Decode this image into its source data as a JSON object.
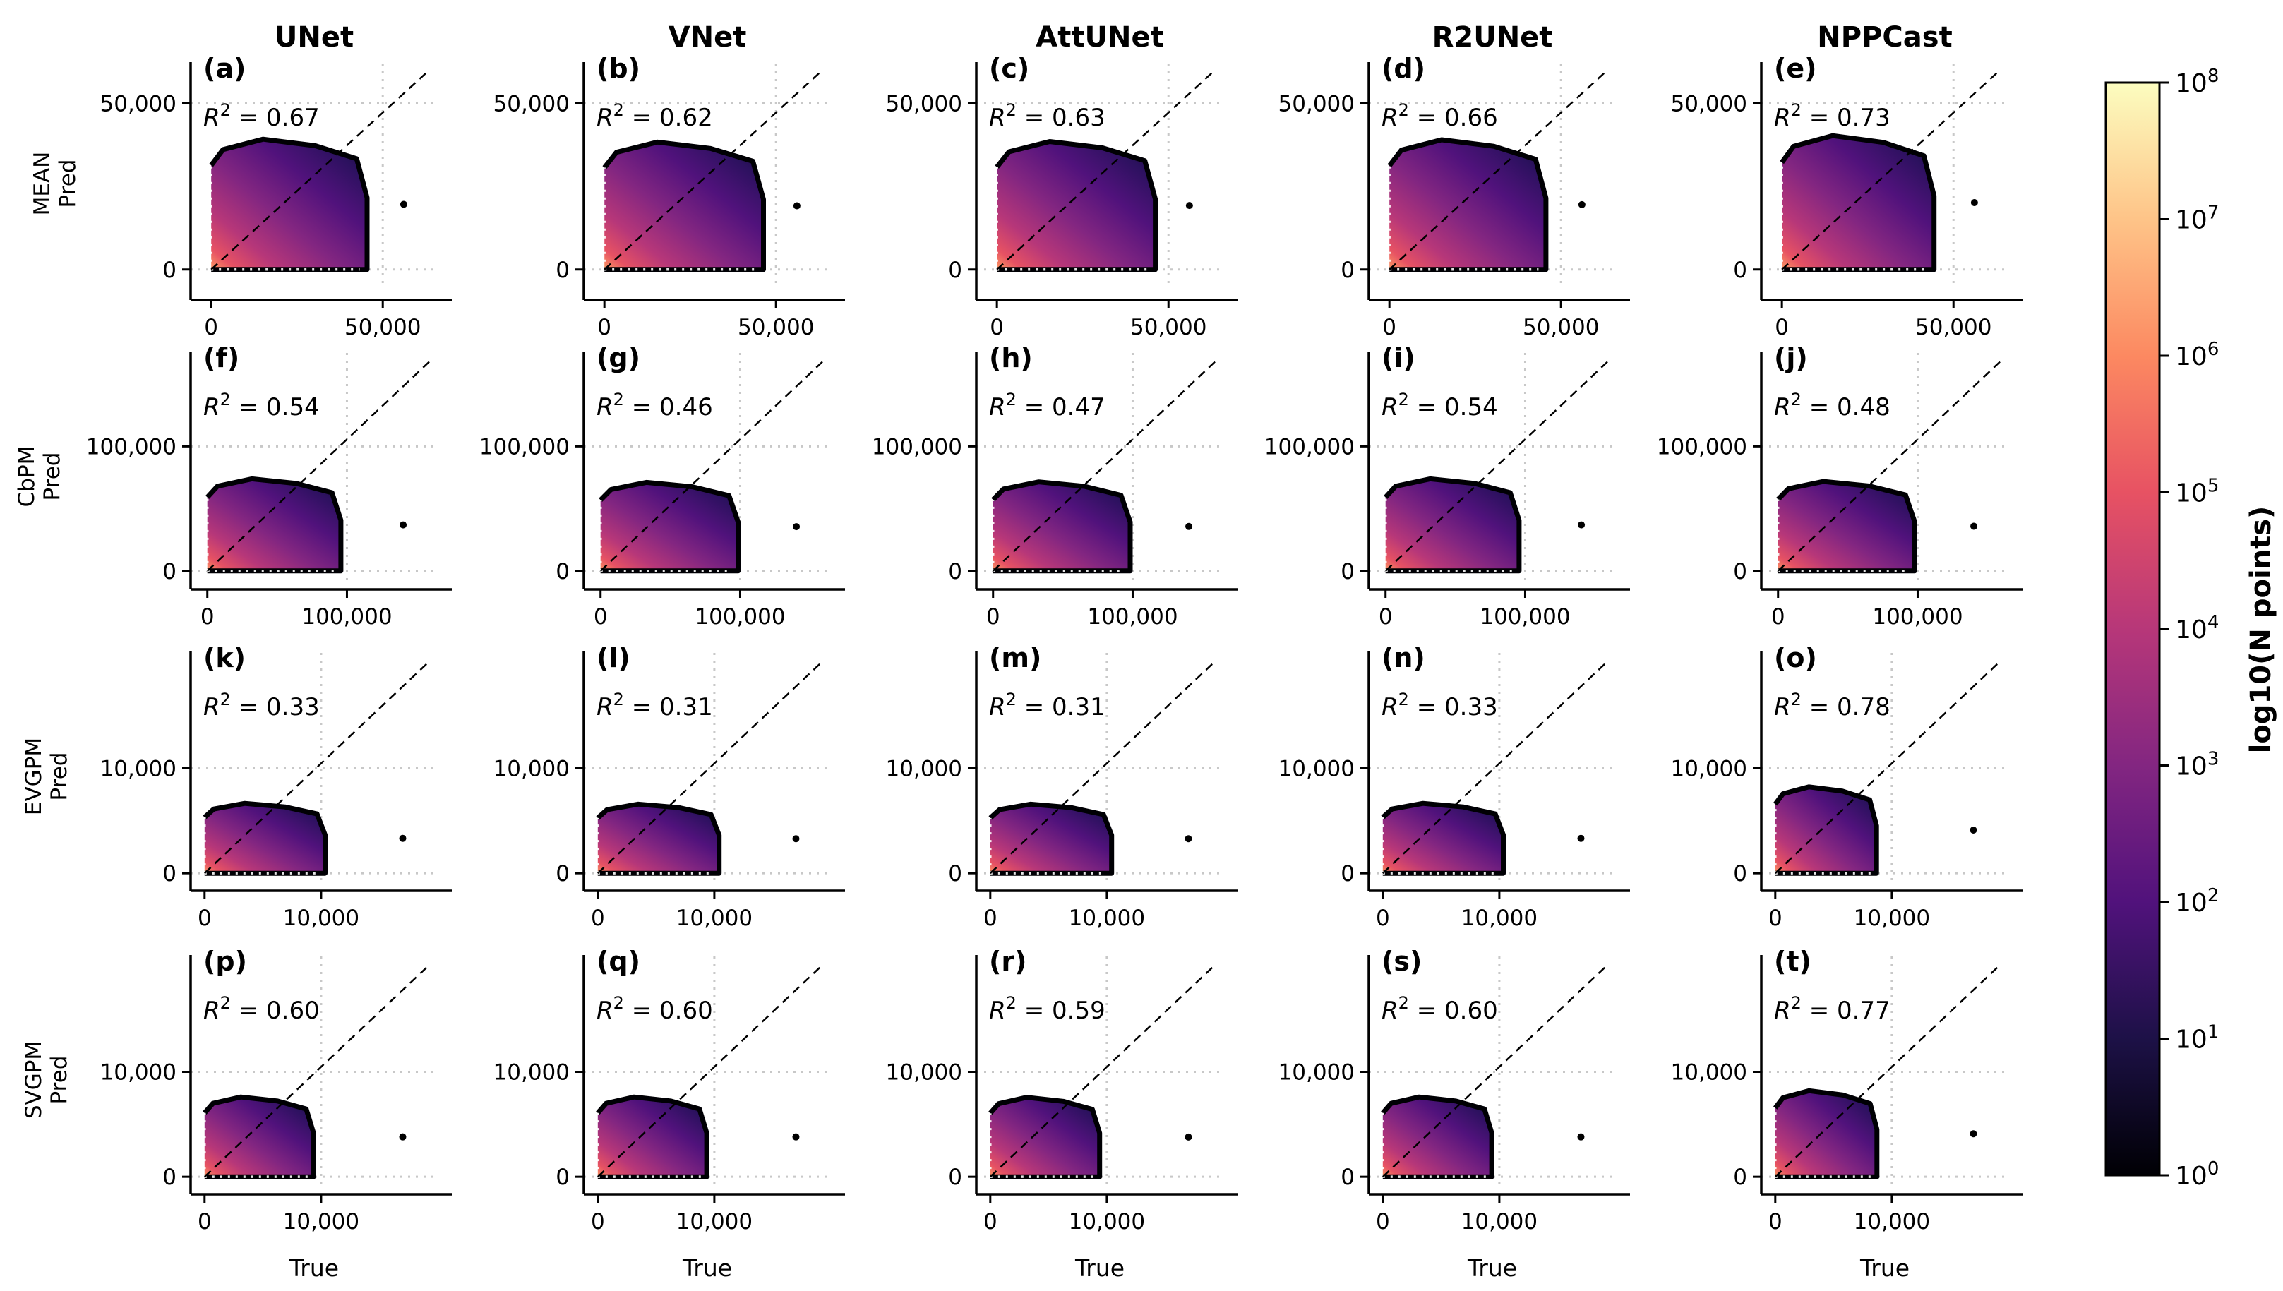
{
  "figure": {
    "columns": [
      "UNet",
      "VNet",
      "AttUNet",
      "R2UNet",
      "NPPCast"
    ],
    "rows": [
      {
        "name": "MEAN",
        "ylabel": "MEAN\nPred"
      },
      {
        "name": "CbPM",
        "ylabel": "CbPM\nPred"
      },
      {
        "name": "EVGPM",
        "ylabel": "EVGPM\nPred"
      },
      {
        "name": "SVGPM",
        "ylabel": "SVGPM\nPred"
      }
    ],
    "xlabel": "True",
    "colorbar": {
      "label": "log10(N points)",
      "ticks": [
        "10^0",
        "10^1",
        "10^2",
        "10^3",
        "10^4",
        "10^5",
        "10^6",
        "10^7",
        "10^8"
      ],
      "colormap": "magma",
      "colors": [
        "#000004",
        "#1d1147",
        "#51127c",
        "#832681",
        "#b73779",
        "#e75263",
        "#fc8961",
        "#fec488",
        "#fcfdbf"
      ]
    }
  },
  "chart_data": [
    {
      "type": "hexbin",
      "panel": "(a)",
      "model": "UNet",
      "target": "MEAN",
      "r2": "0.67",
      "r2_value": 0.67,
      "xlabel": "",
      "ylabel": "MEAN Pred",
      "xticks": [
        "0",
        "50,000"
      ],
      "yticks": [
        "0",
        "50,000"
      ],
      "xlim": [
        -6000,
        66000
      ],
      "ylim": [
        -6000,
        62000
      ],
      "vref": 50000,
      "href": 50000
    },
    {
      "type": "hexbin",
      "panel": "(b)",
      "model": "VNet",
      "target": "MEAN",
      "r2": "0.62",
      "r2_value": 0.62,
      "xlabel": "",
      "ylabel": "",
      "xticks": [
        "0",
        "50,000"
      ],
      "yticks": [
        "0",
        "50,000"
      ],
      "xlim": [
        -6000,
        66000
      ],
      "ylim": [
        -6000,
        62000
      ],
      "vref": 50000,
      "href": 50000
    },
    {
      "type": "hexbin",
      "panel": "(c)",
      "model": "AttUNet",
      "target": "MEAN",
      "r2": "0.63",
      "r2_value": 0.63,
      "xlabel": "",
      "ylabel": "",
      "xticks": [
        "0",
        "50,000"
      ],
      "yticks": [
        "0",
        "50,000"
      ],
      "xlim": [
        -6000,
        66000
      ],
      "ylim": [
        -6000,
        62000
      ],
      "vref": 50000,
      "href": 50000
    },
    {
      "type": "hexbin",
      "panel": "(d)",
      "model": "R2UNet",
      "target": "MEAN",
      "r2": "0.66",
      "r2_value": 0.66,
      "xlabel": "",
      "ylabel": "",
      "xticks": [
        "0",
        "50,000"
      ],
      "yticks": [
        "0",
        "50,000"
      ],
      "xlim": [
        -6000,
        66000
      ],
      "ylim": [
        -6000,
        62000
      ],
      "vref": 50000,
      "href": 50000
    },
    {
      "type": "hexbin",
      "panel": "(e)",
      "model": "NPPCast",
      "target": "MEAN",
      "r2": "0.73",
      "r2_value": 0.73,
      "xlabel": "",
      "ylabel": "",
      "xticks": [
        "0",
        "50,000"
      ],
      "yticks": [
        "0",
        "50,000"
      ],
      "xlim": [
        -6000,
        66000
      ],
      "ylim": [
        -6000,
        62000
      ],
      "vref": 50000,
      "href": 50000
    },
    {
      "type": "hexbin",
      "panel": "(f)",
      "model": "UNet",
      "target": "CbPM",
      "r2": "0.54",
      "r2_value": 0.54,
      "xlabel": "",
      "ylabel": "CbPM Pred",
      "xticks": [
        "0",
        "100,000"
      ],
      "yticks": [
        "0",
        "100,000"
      ],
      "xlim": [
        -12000,
        165000
      ],
      "ylim": [
        -12000,
        175000
      ],
      "vref": 100000,
      "href": 100000
    },
    {
      "type": "hexbin",
      "panel": "(g)",
      "model": "VNet",
      "target": "CbPM",
      "r2": "0.46",
      "r2_value": 0.46,
      "xlabel": "",
      "ylabel": "",
      "xticks": [
        "0",
        "100,000"
      ],
      "yticks": [
        "0",
        "100,000"
      ],
      "xlim": [
        -12000,
        165000
      ],
      "ylim": [
        -12000,
        175000
      ],
      "vref": 100000,
      "href": 100000
    },
    {
      "type": "hexbin",
      "panel": "(h)",
      "model": "AttUNet",
      "target": "CbPM",
      "r2": "0.47",
      "r2_value": 0.47,
      "xlabel": "",
      "ylabel": "",
      "xticks": [
        "0",
        "100,000"
      ],
      "yticks": [
        "0",
        "100,000"
      ],
      "xlim": [
        -12000,
        165000
      ],
      "ylim": [
        -12000,
        175000
      ],
      "vref": 100000,
      "href": 100000
    },
    {
      "type": "hexbin",
      "panel": "(i)",
      "model": "R2UNet",
      "target": "CbPM",
      "r2": "0.54",
      "r2_value": 0.54,
      "xlabel": "",
      "ylabel": "",
      "xticks": [
        "0",
        "100,000"
      ],
      "yticks": [
        "0",
        "100,000"
      ],
      "xlim": [
        -12000,
        165000
      ],
      "ylim": [
        -12000,
        175000
      ],
      "vref": 100000,
      "href": 100000
    },
    {
      "type": "hexbin",
      "panel": "(j)",
      "model": "NPPCast",
      "target": "CbPM",
      "r2": "0.48",
      "r2_value": 0.48,
      "xlabel": "",
      "ylabel": "",
      "xticks": [
        "0",
        "100,000"
      ],
      "yticks": [
        "0",
        "100,000"
      ],
      "xlim": [
        -12000,
        165000
      ],
      "ylim": [
        -12000,
        175000
      ],
      "vref": 100000,
      "href": 100000
    },
    {
      "type": "hexbin",
      "panel": "(k)",
      "model": "UNet",
      "target": "EVGPM",
      "r2": "0.33",
      "r2_value": 0.33,
      "xlabel": "",
      "ylabel": "EVGPM Pred",
      "xticks": [
        "0",
        "10,000"
      ],
      "yticks": [
        "0",
        "10,000"
      ],
      "xlim": [
        -1200,
        20000
      ],
      "ylim": [
        -1200,
        21000
      ],
      "vref": 10000,
      "href": 10000
    },
    {
      "type": "hexbin",
      "panel": "(l)",
      "model": "VNet",
      "target": "EVGPM",
      "r2": "0.31",
      "r2_value": 0.31,
      "xlabel": "",
      "ylabel": "",
      "xticks": [
        "0",
        "10,000"
      ],
      "yticks": [
        "0",
        "10,000"
      ],
      "xlim": [
        -1200,
        20000
      ],
      "ylim": [
        -1200,
        21000
      ],
      "vref": 10000,
      "href": 10000
    },
    {
      "type": "hexbin",
      "panel": "(m)",
      "model": "AttUNet",
      "target": "EVGPM",
      "r2": "0.31",
      "r2_value": 0.31,
      "xlabel": "",
      "ylabel": "",
      "xticks": [
        "0",
        "10,000"
      ],
      "yticks": [
        "0",
        "10,000"
      ],
      "xlim": [
        -1200,
        20000
      ],
      "ylim": [
        -1200,
        21000
      ],
      "vref": 10000,
      "href": 10000
    },
    {
      "type": "hexbin",
      "panel": "(n)",
      "model": "R2UNet",
      "target": "EVGPM",
      "r2": "0.33",
      "r2_value": 0.33,
      "xlabel": "",
      "ylabel": "",
      "xticks": [
        "0",
        "10,000"
      ],
      "yticks": [
        "0",
        "10,000"
      ],
      "xlim": [
        -1200,
        20000
      ],
      "ylim": [
        -1200,
        21000
      ],
      "vref": 10000,
      "href": 10000
    },
    {
      "type": "hexbin",
      "panel": "(o)",
      "model": "NPPCast",
      "target": "EVGPM",
      "r2": "0.78",
      "r2_value": 0.78,
      "xlabel": "",
      "ylabel": "",
      "xticks": [
        "0",
        "10,000"
      ],
      "yticks": [
        "0",
        "10,000"
      ],
      "xlim": [
        -1200,
        20000
      ],
      "ylim": [
        -1200,
        21000
      ],
      "vref": 10000,
      "href": 10000
    },
    {
      "type": "hexbin",
      "panel": "(p)",
      "model": "UNet",
      "target": "SVGPM",
      "r2": "0.60",
      "r2_value": 0.6,
      "xlabel": "True",
      "ylabel": "SVGPM Pred",
      "xticks": [
        "0",
        "10,000"
      ],
      "yticks": [
        "0",
        "10,000"
      ],
      "xlim": [
        -1200,
        20000
      ],
      "ylim": [
        -1200,
        21000
      ],
      "vref": 10000,
      "href": 10000
    },
    {
      "type": "hexbin",
      "panel": "(q)",
      "model": "VNet",
      "target": "SVGPM",
      "r2": "0.60",
      "r2_value": 0.6,
      "xlabel": "True",
      "ylabel": "",
      "xticks": [
        "0",
        "10,000"
      ],
      "yticks": [
        "0",
        "10,000"
      ],
      "xlim": [
        -1200,
        20000
      ],
      "ylim": [
        -1200,
        21000
      ],
      "vref": 10000,
      "href": 10000
    },
    {
      "type": "hexbin",
      "panel": "(r)",
      "model": "AttUNet",
      "target": "SVGPM",
      "r2": "0.59",
      "r2_value": 0.59,
      "xlabel": "True",
      "ylabel": "",
      "xticks": [
        "0",
        "10,000"
      ],
      "yticks": [
        "0",
        "10,000"
      ],
      "xlim": [
        -1200,
        20000
      ],
      "ylim": [
        -1200,
        21000
      ],
      "vref": 10000,
      "href": 10000
    },
    {
      "type": "hexbin",
      "panel": "(s)",
      "model": "R2UNet",
      "target": "SVGPM",
      "r2": "0.60",
      "r2_value": 0.6,
      "xlabel": "True",
      "ylabel": "",
      "xticks": [
        "0",
        "10,000"
      ],
      "yticks": [
        "0",
        "10,000"
      ],
      "xlim": [
        -1200,
        20000
      ],
      "ylim": [
        -1200,
        21000
      ],
      "vref": 10000,
      "href": 10000
    },
    {
      "type": "hexbin",
      "panel": "(t)",
      "model": "NPPCast",
      "target": "SVGPM",
      "r2": "0.77",
      "r2_value": 0.77,
      "xlabel": "True",
      "ylabel": "",
      "xticks": [
        "0",
        "10,000"
      ],
      "yticks": [
        "0",
        "10,000"
      ],
      "xlim": [
        -1200,
        20000
      ],
      "ylim": [
        -1200,
        21000
      ],
      "vref": 10000,
      "href": 10000
    }
  ]
}
